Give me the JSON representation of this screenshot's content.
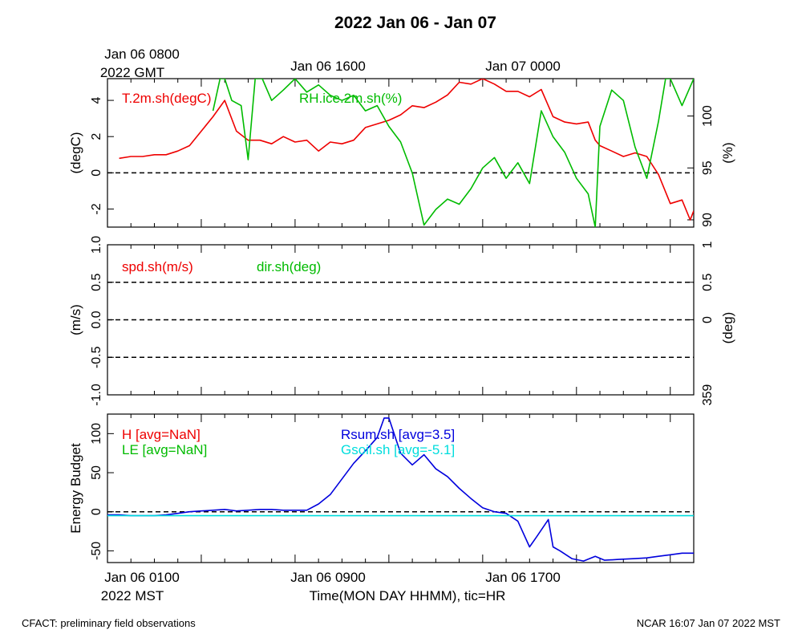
{
  "figure": {
    "title": "2022 Jan 06 - Jan 07",
    "gmt_labels": {
      "first_line1": "Jan 06 0800",
      "first_line2": "2022 GMT",
      "second": "Jan 06 1600",
      "third": "Jan 07 0000"
    },
    "mst_labels": {
      "first": "Jan 06 0100",
      "first_line2": "2022 MST",
      "second": "Jan 06 0900",
      "third": "Jan 06 1700"
    },
    "xlabel": "Time(MON DAY HHMM), tic=HR",
    "footer_left": "CFACT: preliminary field observations",
    "footer_right": "NCAR 16:07 Jan 07 2022 MST"
  },
  "colors": {
    "red": "#ee0000",
    "green": "#00bb00",
    "blue": "#0000dd",
    "cyan": "#00dddd",
    "axis": "#000000"
  },
  "chart_data": [
    {
      "type": "line",
      "panel": "temperature-humidity",
      "xlim": [
        0,
        25
      ],
      "x_unit": "hours since Jan 06 0000 MST",
      "ylim": [
        -3,
        5.2
      ],
      "ylabel": "(degC)",
      "yticks": [
        -2,
        0,
        2,
        4
      ],
      "ytick_labels": [
        "-2",
        "0",
        "2",
        "4"
      ],
      "y2lim": [
        89.3,
        103.6
      ],
      "y2label": "(%)",
      "y2ticks": [
        90,
        95,
        100
      ],
      "y2tick_labels": [
        "90",
        "95",
        "100"
      ],
      "reference_lines": [
        {
          "axis": "y",
          "value": 0,
          "style": "dashed"
        }
      ],
      "series": [
        {
          "name": "T.2m.sh(degC)",
          "color": "red",
          "axis": "left",
          "x": [
            0.5,
            1.0,
            1.5,
            2.0,
            2.5,
            3.0,
            3.5,
            4.0,
            4.5,
            5.0,
            5.5,
            6.0,
            6.5,
            7.0,
            7.5,
            8.0,
            8.5,
            9.0,
            9.5,
            10.0,
            10.5,
            11.0,
            11.5,
            12.0,
            12.5,
            13.0,
            13.5,
            14.0,
            14.5,
            15.0,
            15.5,
            16.0,
            16.5,
            17.0,
            17.5,
            18.0,
            18.5,
            19.0,
            19.5,
            20.0,
            20.5,
            20.8,
            21.0,
            21.5,
            22.0,
            22.5,
            23.0,
            23.5,
            24.0,
            24.5,
            24.85,
            25.0
          ],
          "values": [
            0.8,
            0.9,
            0.9,
            1.0,
            1.0,
            1.2,
            1.5,
            2.3,
            3.1,
            4.0,
            2.3,
            1.8,
            1.8,
            1.6,
            2.0,
            1.7,
            1.8,
            1.2,
            1.7,
            1.6,
            1.8,
            2.5,
            2.7,
            2.9,
            3.2,
            3.7,
            3.6,
            3.9,
            4.3,
            5.0,
            4.9,
            5.2,
            4.9,
            4.5,
            4.5,
            4.2,
            4.6,
            3.1,
            2.8,
            2.7,
            2.8,
            1.8,
            1.5,
            1.2,
            0.9,
            1.1,
            0.9,
            -0.1,
            -1.7,
            -1.5,
            -2.6,
            -2.1
          ]
        },
        {
          "name": "RH.ice.2m.sh(%)",
          "color": "green",
          "axis": "right",
          "x": [
            4.5,
            4.8,
            5.0,
            5.3,
            5.7,
            6.0,
            6.3,
            6.6,
            7.0,
            7.5,
            8.0,
            8.5,
            9.0,
            9.5,
            10.0,
            10.5,
            11.0,
            11.5,
            12.0,
            12.5,
            13.0,
            13.5,
            14.0,
            14.5,
            15.0,
            15.5,
            16.0,
            16.5,
            17.0,
            17.5,
            18.0,
            18.5,
            19.0,
            19.5,
            20.0,
            20.5,
            20.8,
            21.0,
            21.5,
            22.0,
            22.5,
            23.0,
            23.5,
            23.8,
            24.0,
            24.5,
            25.0
          ],
          "values": [
            100.5,
            103.6,
            103.6,
            101.5,
            101.0,
            95.8,
            103.6,
            103.6,
            101.5,
            102.5,
            103.6,
            102.3,
            103.0,
            102.0,
            101.5,
            102.0,
            100.5,
            101.0,
            99.0,
            97.5,
            94.5,
            89.5,
            91.0,
            92.0,
            91.5,
            93.0,
            95.0,
            96.0,
            94.0,
            95.5,
            93.5,
            100.5,
            98.0,
            96.5,
            94.0,
            92.5,
            89.3,
            99.0,
            102.5,
            101.5,
            97.0,
            94.0,
            99.5,
            103.6,
            103.6,
            101.0,
            103.6
          ]
        }
      ]
    },
    {
      "type": "line",
      "panel": "wind",
      "xlim": [
        0,
        25
      ],
      "ylim": [
        -1.0,
        1.0
      ],
      "ylabel": "(m/s)",
      "yticks": [
        -1.0,
        -0.5,
        0.0,
        0.5,
        1.0
      ],
      "ytick_labels": [
        "-1.0",
        "-0.5",
        "0.0",
        "0.5",
        "1.0"
      ],
      "y2label": "(deg)",
      "y2tick_labels": [
        "359",
        "0",
        "0.5",
        "1"
      ],
      "reference_lines": [
        {
          "axis": "y",
          "value": 0.5,
          "style": "dashed"
        },
        {
          "axis": "y",
          "value": 0.0,
          "style": "dashed"
        },
        {
          "axis": "y",
          "value": -0.5,
          "style": "dashed"
        }
      ],
      "series": [
        {
          "name": "spd.sh(m/s)",
          "color": "red",
          "values": []
        },
        {
          "name": "dir.sh(deg)",
          "color": "green",
          "values": []
        }
      ]
    },
    {
      "type": "line",
      "panel": "energy-budget",
      "xlim": [
        0,
        25
      ],
      "ylim": [
        -65,
        125
      ],
      "ylabel": "Energy Budget",
      "yticks": [
        -50,
        0,
        50,
        100
      ],
      "ytick_labels": [
        "-50",
        "0",
        "50",
        "100"
      ],
      "reference_lines": [
        {
          "axis": "y",
          "value": 0,
          "style": "dashed"
        }
      ],
      "series": [
        {
          "name": "H [avg=NaN]",
          "color": "red",
          "values": []
        },
        {
          "name": "LE [avg=NaN]",
          "color": "green",
          "values": []
        },
        {
          "name": "Rsum.sh [avg=3.5]",
          "color": "blue",
          "x": [
            0,
            0.5,
            1.0,
            1.5,
            2.0,
            2.5,
            3.0,
            3.5,
            4.0,
            4.5,
            5.0,
            5.5,
            6.0,
            6.5,
            7.0,
            7.5,
            8.0,
            8.5,
            9.0,
            9.5,
            10.0,
            10.5,
            11.0,
            11.5,
            11.8,
            12.0,
            12.5,
            13.0,
            13.5,
            14.0,
            14.5,
            15.0,
            15.5,
            16.0,
            16.5,
            17.0,
            17.5,
            18.0,
            18.3,
            18.8,
            19.0,
            19.3,
            19.8,
            20.3,
            20.8,
            21.2,
            21.8,
            22.5,
            23.0,
            23.5,
            24.0,
            24.5,
            25.0
          ],
          "values": [
            -4,
            -4,
            -5,
            -5,
            -5,
            -4,
            -2,
            0,
            1,
            2,
            3,
            1,
            2,
            3,
            3,
            2,
            2,
            2,
            10,
            22,
            42,
            62,
            78,
            95,
            120,
            120,
            75,
            60,
            73,
            55,
            45,
            30,
            17,
            5,
            0,
            -2,
            -12,
            -45,
            -32,
            -10,
            -45,
            -50,
            -60,
            -63,
            -57,
            -62,
            -61,
            -60,
            -59,
            -57,
            -55,
            -53,
            -53
          ]
        },
        {
          "name": "Gsoil.sh [avg=-5.1]",
          "color": "cyan",
          "x": [
            0,
            25
          ],
          "values": [
            -5,
            -5
          ]
        }
      ]
    }
  ]
}
